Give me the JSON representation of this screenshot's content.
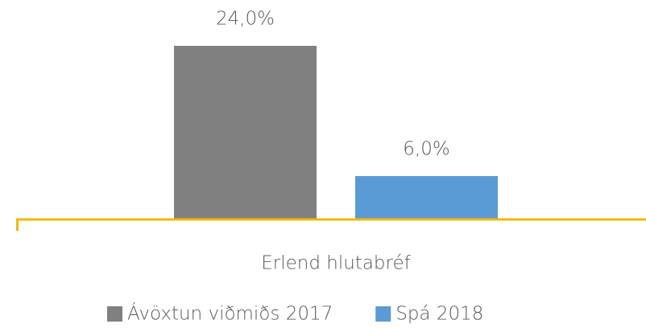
{
  "chart_data": {
    "type": "bar",
    "categories": [
      "Erlend hlutabréf"
    ],
    "series": [
      {
        "name": "Ávöxtun viðmiðs 2017",
        "color": "#808080",
        "values": [
          24
        ],
        "value_labels": [
          "24,0%"
        ]
      },
      {
        "name": "Spá 2018",
        "color": "#5b9bd5",
        "values": [
          6
        ],
        "value_labels": [
          "6,0%"
        ]
      }
    ],
    "ylim": [
      0,
      28
    ],
    "axis_color": "#f5b800",
    "legend": "bottom"
  }
}
